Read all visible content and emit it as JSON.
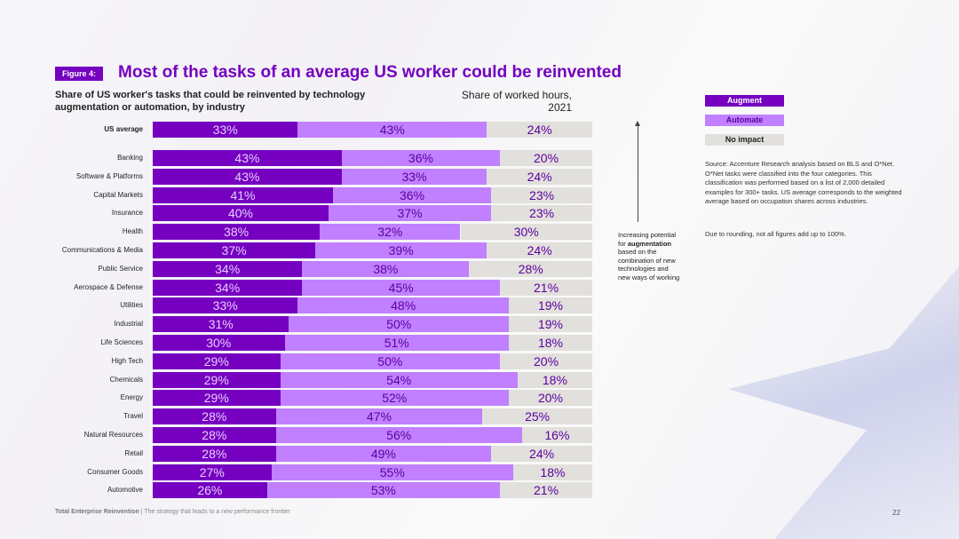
{
  "figure_label": "Figure 4:",
  "chart_data": {
    "type": "bar",
    "stacked": true,
    "orientation": "horizontal",
    "title": "Most of the tasks of an average US worker could be reinvented",
    "subtitle": "Share of US worker's tasks that could be reinvented by technology augmentation or automation, by industry",
    "value_header": "Share of worked hours, 2021",
    "legend": [
      "Augment",
      "Automate",
      "No impact"
    ],
    "categories": [
      "US average",
      "Banking",
      "Software & Platforms",
      "Capital Markets",
      "Insurance",
      "Health",
      "Communications & Media",
      "Public Service",
      "Aerospace & Defense",
      "Utilities",
      "Industrial",
      "Life Sciences",
      "High Tech",
      "Chemicals",
      "Energy",
      "Travel",
      "Natural Resources",
      "Retail",
      "Consumer Goods",
      "Automotive"
    ],
    "series": [
      {
        "name": "Augment",
        "color": "#7500c0",
        "values": [
          33,
          43,
          43,
          41,
          40,
          38,
          37,
          34,
          34,
          33,
          31,
          30,
          29,
          29,
          29,
          28,
          28,
          28,
          27,
          26
        ]
      },
      {
        "name": "Automate",
        "color": "#c080ff",
        "values": [
          43,
          36,
          33,
          36,
          37,
          32,
          39,
          38,
          45,
          48,
          50,
          51,
          50,
          54,
          52,
          47,
          56,
          49,
          55,
          53
        ]
      },
      {
        "name": "No impact",
        "color": "#e2e0dc",
        "values": [
          24,
          20,
          24,
          23,
          23,
          30,
          24,
          28,
          21,
          19,
          19,
          18,
          20,
          18,
          20,
          25,
          16,
          24,
          18,
          21
        ]
      }
    ],
    "xlim": [
      0,
      100
    ]
  },
  "arrow_note": {
    "pre": "Increasing potential for ",
    "bold": "augmentation",
    "post": " based on the combination of new technologies and new ways of working"
  },
  "source": "Source: Accenture Research analysis based on BLS and O*Net. O*Net tasks were classified into the four categories. This classification was performed based on a list of 2,000 detailed examples for 300+ tasks. US average corresponds to the weighted average based on occupation shares across industries.",
  "rounding_note": "Due to rounding, not all figures add up to 100%.",
  "footer": {
    "bold": "Total Enterprise Reinvention",
    "text": " | The strategy that leads to a new performance frontier"
  },
  "page_number": "22"
}
